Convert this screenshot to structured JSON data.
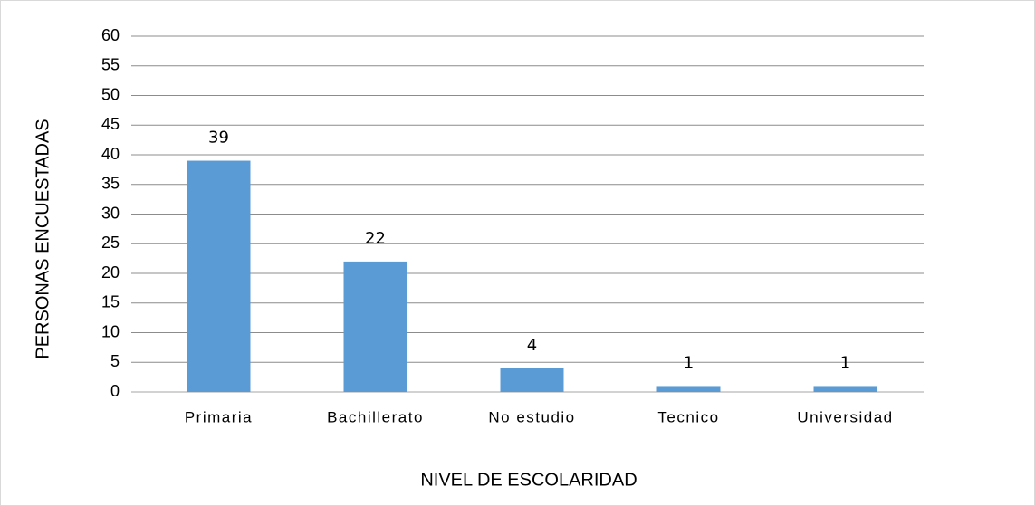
{
  "chart_data": {
    "type": "bar",
    "x_label": "NIVEL DE ESCOLARIDAD",
    "y_label": "PERSONAS ENCUESTADAS",
    "categories": [
      "Primaria",
      "Bachillerato",
      "No estudio",
      "Tecnico",
      "Universidad"
    ],
    "values": [
      39,
      22,
      4,
      1,
      1
    ],
    "color": "#5b9bd5",
    "ylim": [
      0,
      60
    ],
    "yticks": [
      0,
      5,
      10,
      15,
      20,
      25,
      30,
      35,
      40,
      45,
      50,
      55,
      60
    ],
    "grid": true
  }
}
